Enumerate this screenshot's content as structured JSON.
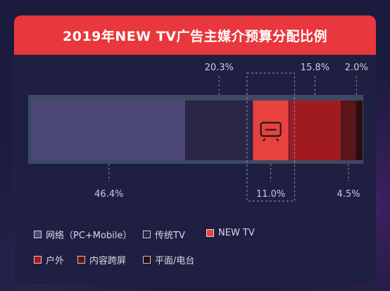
{
  "title": "2019年NEW TV广告主媒介预算分配比例",
  "chart_data": {
    "type": "bar",
    "stacked": true,
    "orientation": "horizontal",
    "unit": "%",
    "categories": [
      "网络（PC+Mobile）",
      "传统TV",
      "NEW TV",
      "户外",
      "内容跨屏",
      "平面/电台"
    ],
    "values": [
      46.4,
      20.3,
      11.0,
      15.8,
      4.5,
      2.0
    ],
    "labels": [
      "46.4%",
      "20.3%",
      "11.0%",
      "15.8%",
      "4.5%",
      "2.0%"
    ],
    "colors": [
      "#4c4878",
      "#2b2547",
      "#e8423f",
      "#a01b1f",
      "#5c1418",
      "#2c0d0f"
    ],
    "highlight": "NEW TV",
    "highlight_icon": "tv-icon",
    "legend_position": "bottom"
  }
}
